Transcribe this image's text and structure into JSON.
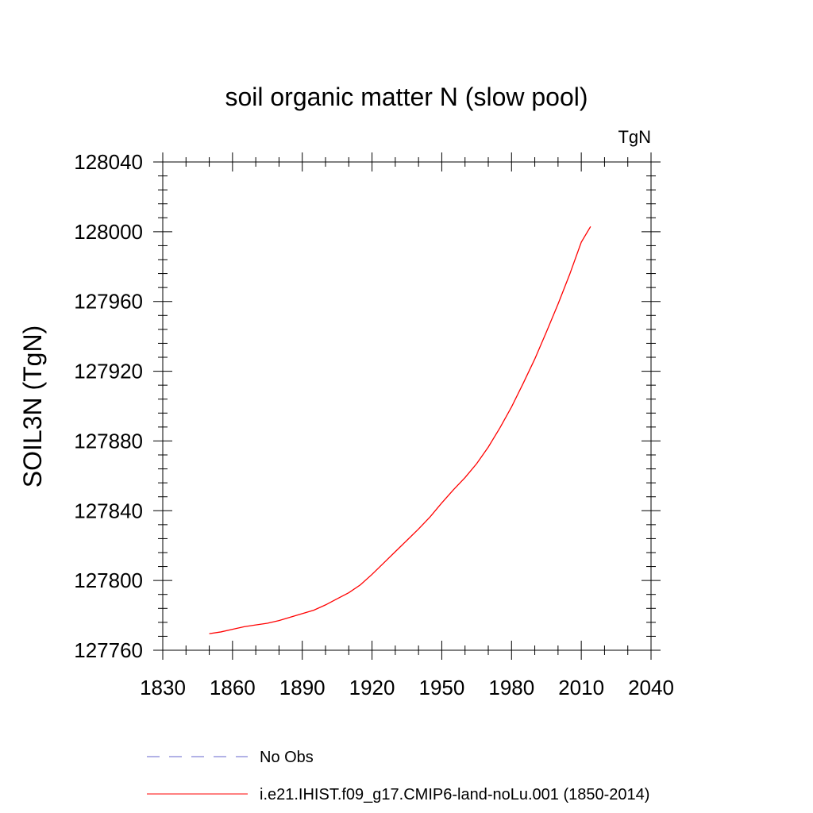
{
  "chart_data": {
    "type": "line",
    "title": "soil organic matter N (slow pool)",
    "units_label": "TgN",
    "ylabel": "SOIL3N  (TgN)",
    "xlabel": "",
    "xlim": [
      1830,
      2040
    ],
    "ylim": [
      127760,
      128040
    ],
    "xticks": [
      1830,
      1860,
      1890,
      1920,
      1950,
      1980,
      2010,
      2040
    ],
    "yticks": [
      127760,
      127800,
      127840,
      127880,
      127920,
      127960,
      128000,
      128040
    ],
    "grid": false,
    "legend_position": "bottom",
    "series": [
      {
        "name": "No Obs",
        "color": "#6666cc",
        "dash": "dashed",
        "x": [],
        "y": []
      },
      {
        "name": "i.e21.IHIST.f09_g17.CMIP6-land-noLu.001 (1850-2014)",
        "color": "#ff0000",
        "dash": "solid",
        "x": [
          1850,
          1855,
          1860,
          1865,
          1870,
          1875,
          1880,
          1885,
          1890,
          1895,
          1900,
          1905,
          1910,
          1915,
          1920,
          1925,
          1930,
          1935,
          1940,
          1945,
          1950,
          1955,
          1960,
          1965,
          1970,
          1975,
          1980,
          1985,
          1990,
          1995,
          2000,
          2005,
          2010,
          2014
        ],
        "y": [
          127769.5,
          127770.5,
          127772,
          127773.5,
          127774.5,
          127775.5,
          127777,
          127779,
          127781,
          127783,
          127786,
          127789.5,
          127793,
          127797.5,
          127803.5,
          127810,
          127816.5,
          127823,
          127829.5,
          127836.5,
          127844.5,
          127852,
          127859,
          127867,
          127876.5,
          127887.5,
          127899.5,
          127913,
          127927,
          127942.5,
          127958.5,
          127975.5,
          127994,
          128003
        ]
      }
    ]
  }
}
